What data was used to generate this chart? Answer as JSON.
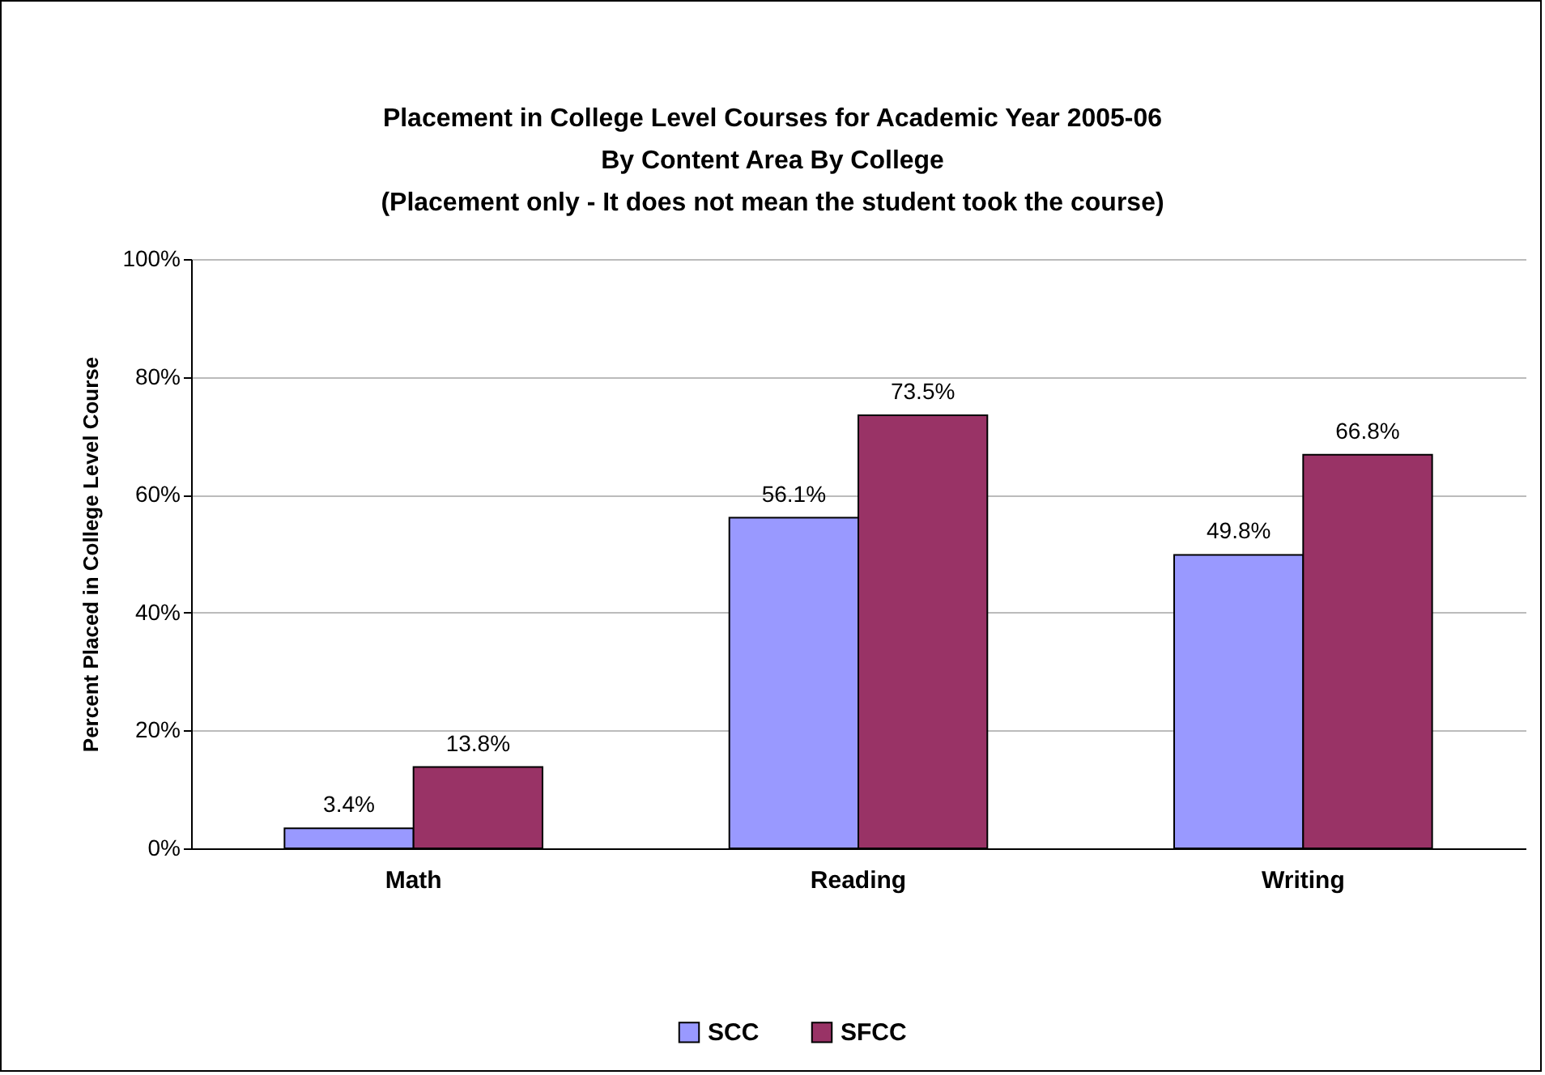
{
  "chart_data": {
    "type": "bar",
    "title": [
      "Placement in College Level Courses for Academic Year 2005-06",
      "By Content Area By College",
      "(Placement only - It does not mean the student took the course)"
    ],
    "ylabel": "Percent Placed in College Level Course",
    "categories": [
      "Math",
      "Reading",
      "Writing"
    ],
    "series": [
      {
        "name": "SCC",
        "color": "#9999ff",
        "values": [
          3.4,
          56.1,
          49.8
        ],
        "value_labels": [
          "3.4%",
          "56.1%",
          "49.8%"
        ]
      },
      {
        "name": "SFCC",
        "color": "#993366",
        "values": [
          13.8,
          73.5,
          66.8
        ],
        "value_labels": [
          "13.8%",
          "73.5%",
          "66.8%"
        ]
      }
    ],
    "ylim": [
      0,
      100
    ],
    "yticks": [
      {
        "value": 0,
        "label": "0%"
      },
      {
        "value": 20,
        "label": "20%"
      },
      {
        "value": 40,
        "label": "40%"
      },
      {
        "value": 60,
        "label": "60%"
      },
      {
        "value": 80,
        "label": "80%"
      },
      {
        "value": 100,
        "label": "100%"
      }
    ],
    "grid": "y",
    "legend": "bottom"
  }
}
